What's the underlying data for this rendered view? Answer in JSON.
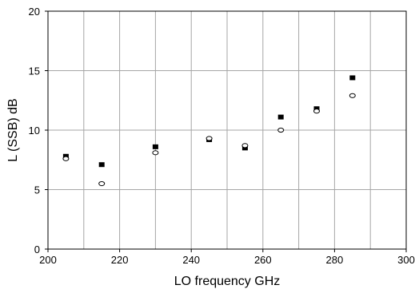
{
  "chart_data": {
    "type": "scatter",
    "xlabel": "LO frequency  GHz",
    "ylabel": "L  (SSB)  dB",
    "xlim": [
      200,
      300
    ],
    "ylim": [
      0,
      20
    ],
    "x_ticks": [
      200,
      220,
      240,
      260,
      280,
      300
    ],
    "y_ticks": [
      0,
      5,
      10,
      15,
      20
    ],
    "x_grid_step": 10,
    "grid": true,
    "legend": "none",
    "series": [
      {
        "marker": "filled-square",
        "color": "#000000",
        "x": [
          205,
          215,
          230,
          245,
          255,
          265,
          275,
          285
        ],
        "y": [
          7.8,
          7.1,
          8.6,
          9.2,
          8.5,
          11.1,
          11.8,
          14.4
        ]
      },
      {
        "marker": "open-circle",
        "color": "#000000",
        "x": [
          205,
          215,
          230,
          245,
          255,
          265,
          275,
          285
        ],
        "y": [
          7.6,
          5.5,
          8.1,
          9.3,
          8.7,
          10.0,
          11.6,
          12.9
        ]
      }
    ]
  }
}
